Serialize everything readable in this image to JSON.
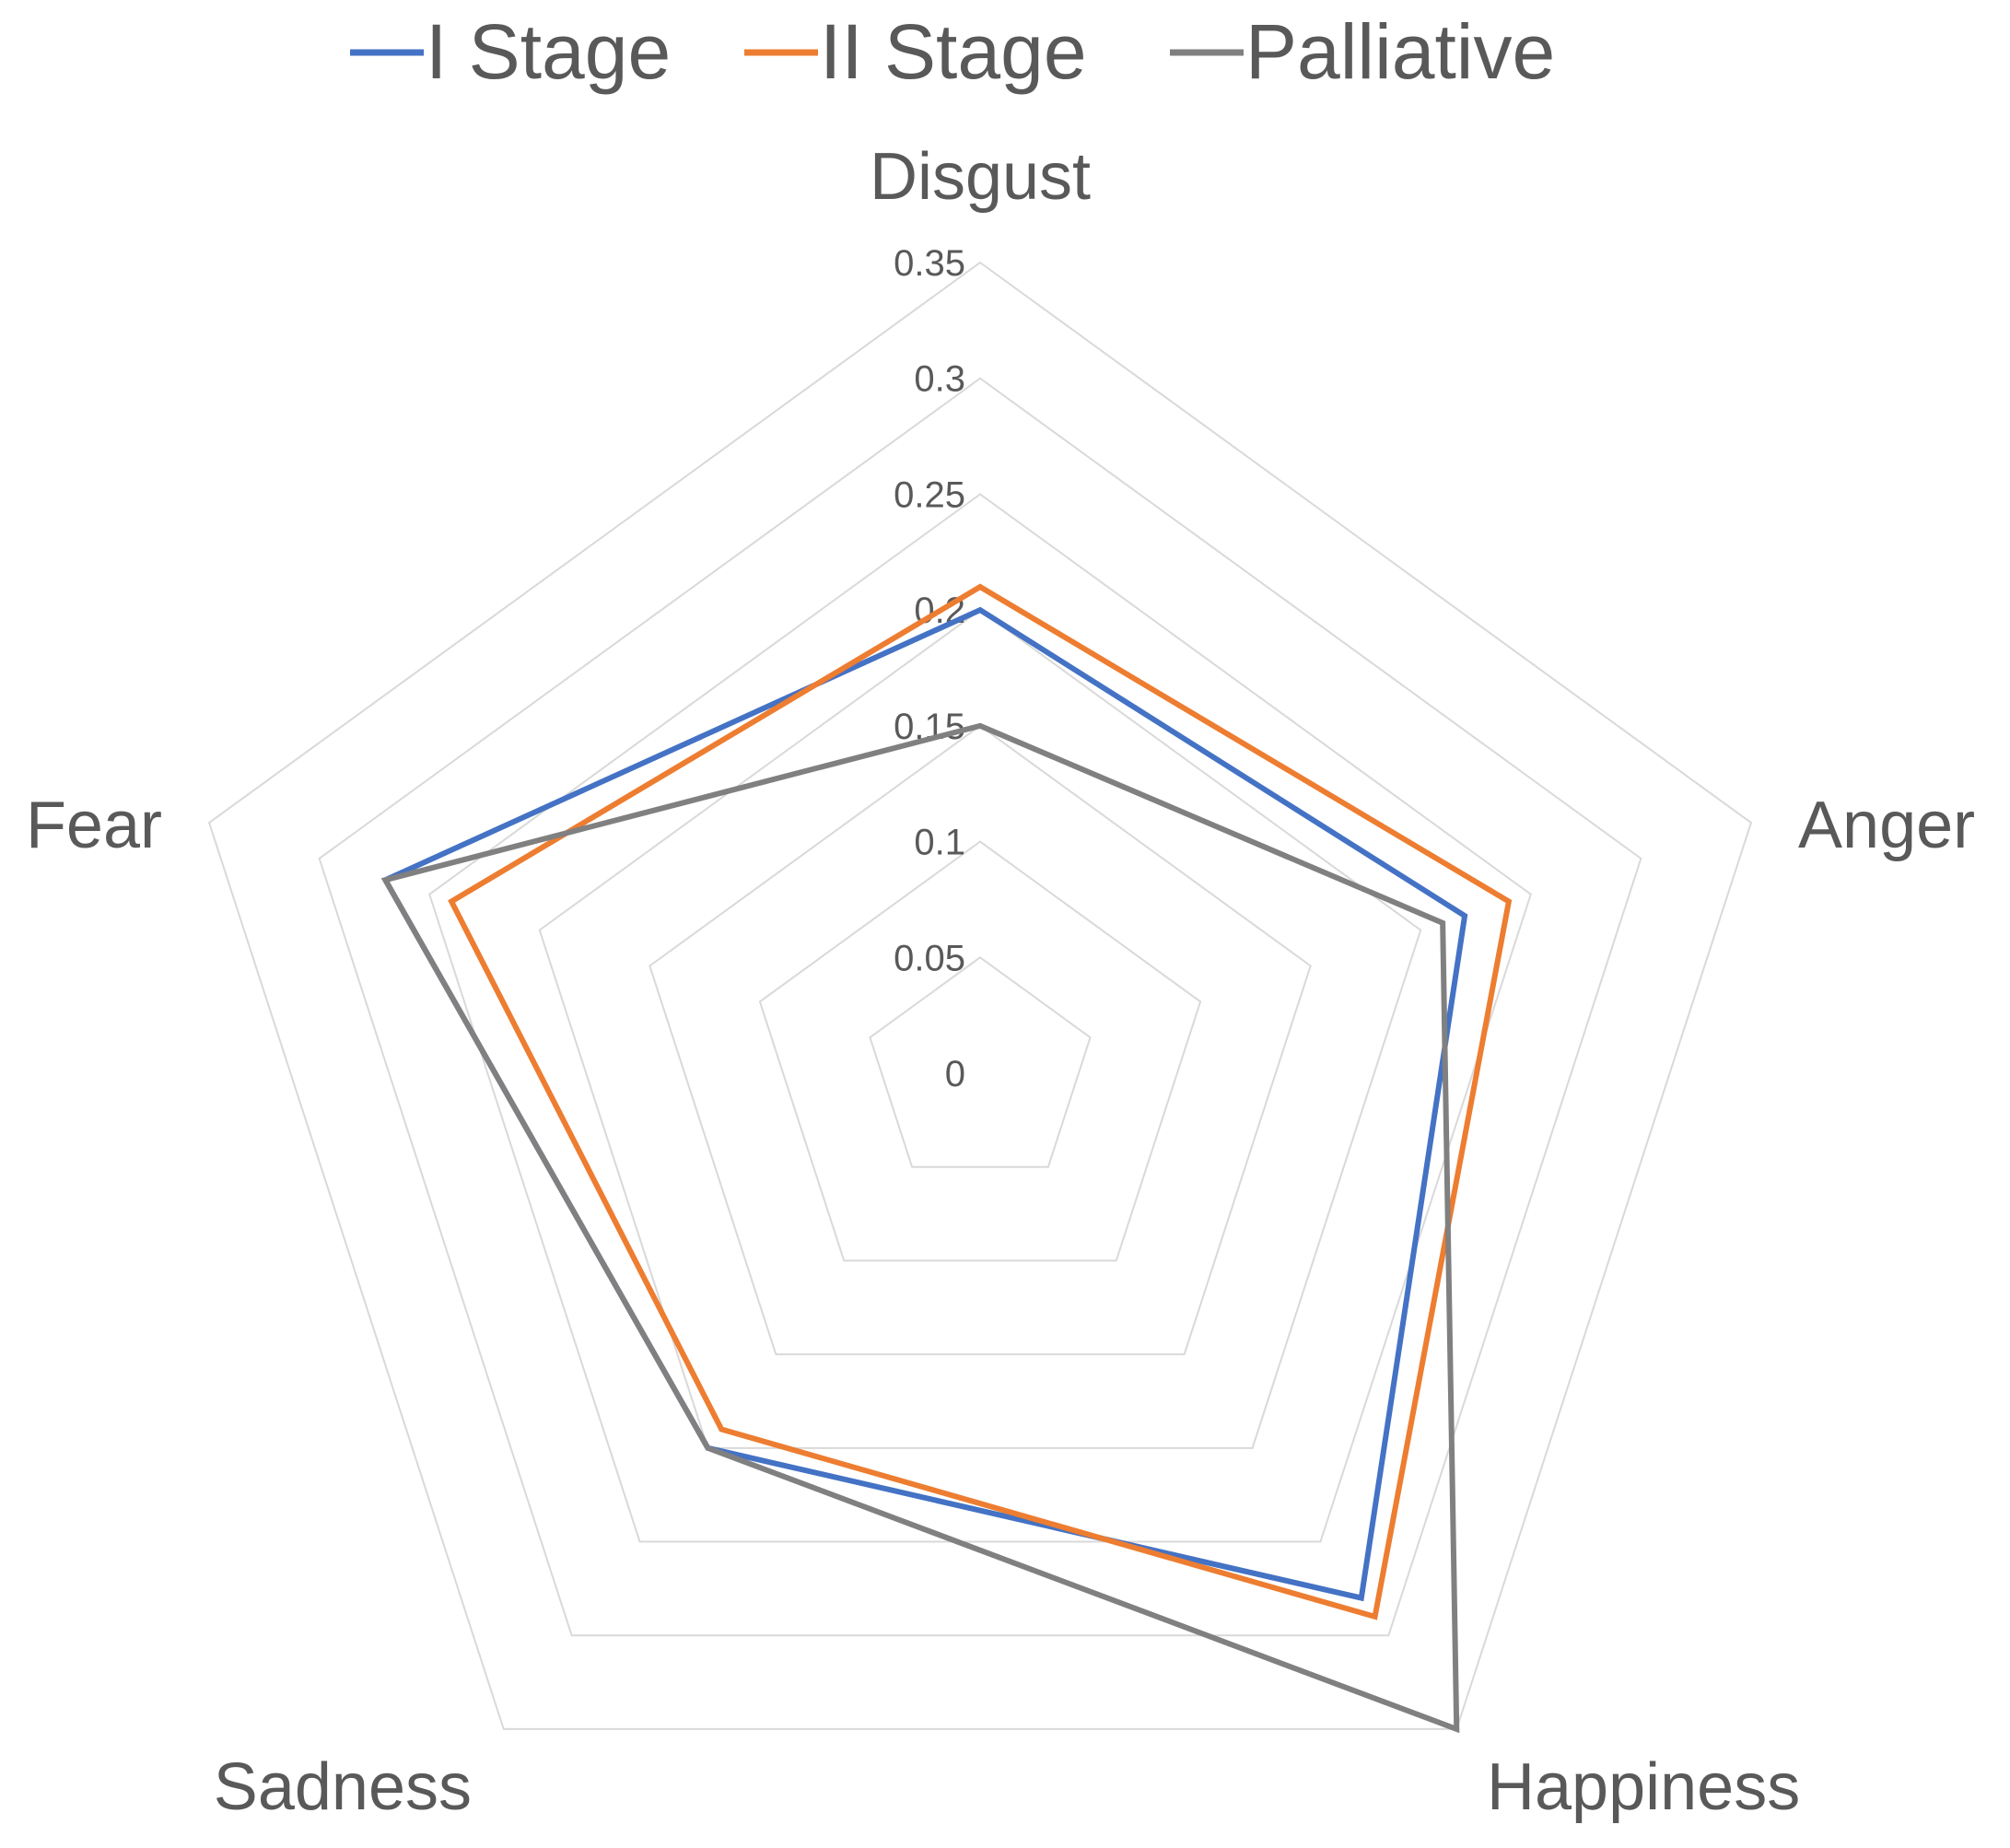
{
  "chart_data": {
    "type": "radar",
    "categories": [
      "Disgust",
      "Anger",
      "Happiness",
      "Sadness",
      "Fear"
    ],
    "rlim": [
      0,
      0.35
    ],
    "ticks": [
      "0",
      "0.05",
      "0.1",
      "0.15",
      "0.2",
      "0.25",
      "0.3",
      "0.35"
    ],
    "tick_values": [
      0,
      0.05,
      0.1,
      0.15,
      0.2,
      0.25,
      0.3,
      0.35
    ],
    "grid": true,
    "legend_position": "top",
    "series": [
      {
        "name": "I Stage",
        "color": "#4472C4",
        "values": [
          0.2,
          0.22,
          0.28,
          0.2,
          0.27
        ]
      },
      {
        "name": "II Stage",
        "color": "#ED7D31",
        "values": [
          0.21,
          0.24,
          0.29,
          0.19,
          0.24
        ]
      },
      {
        "name": "Palliative",
        "color": "#808080",
        "values": [
          0.15,
          0.21,
          0.35,
          0.2,
          0.27
        ]
      }
    ]
  }
}
